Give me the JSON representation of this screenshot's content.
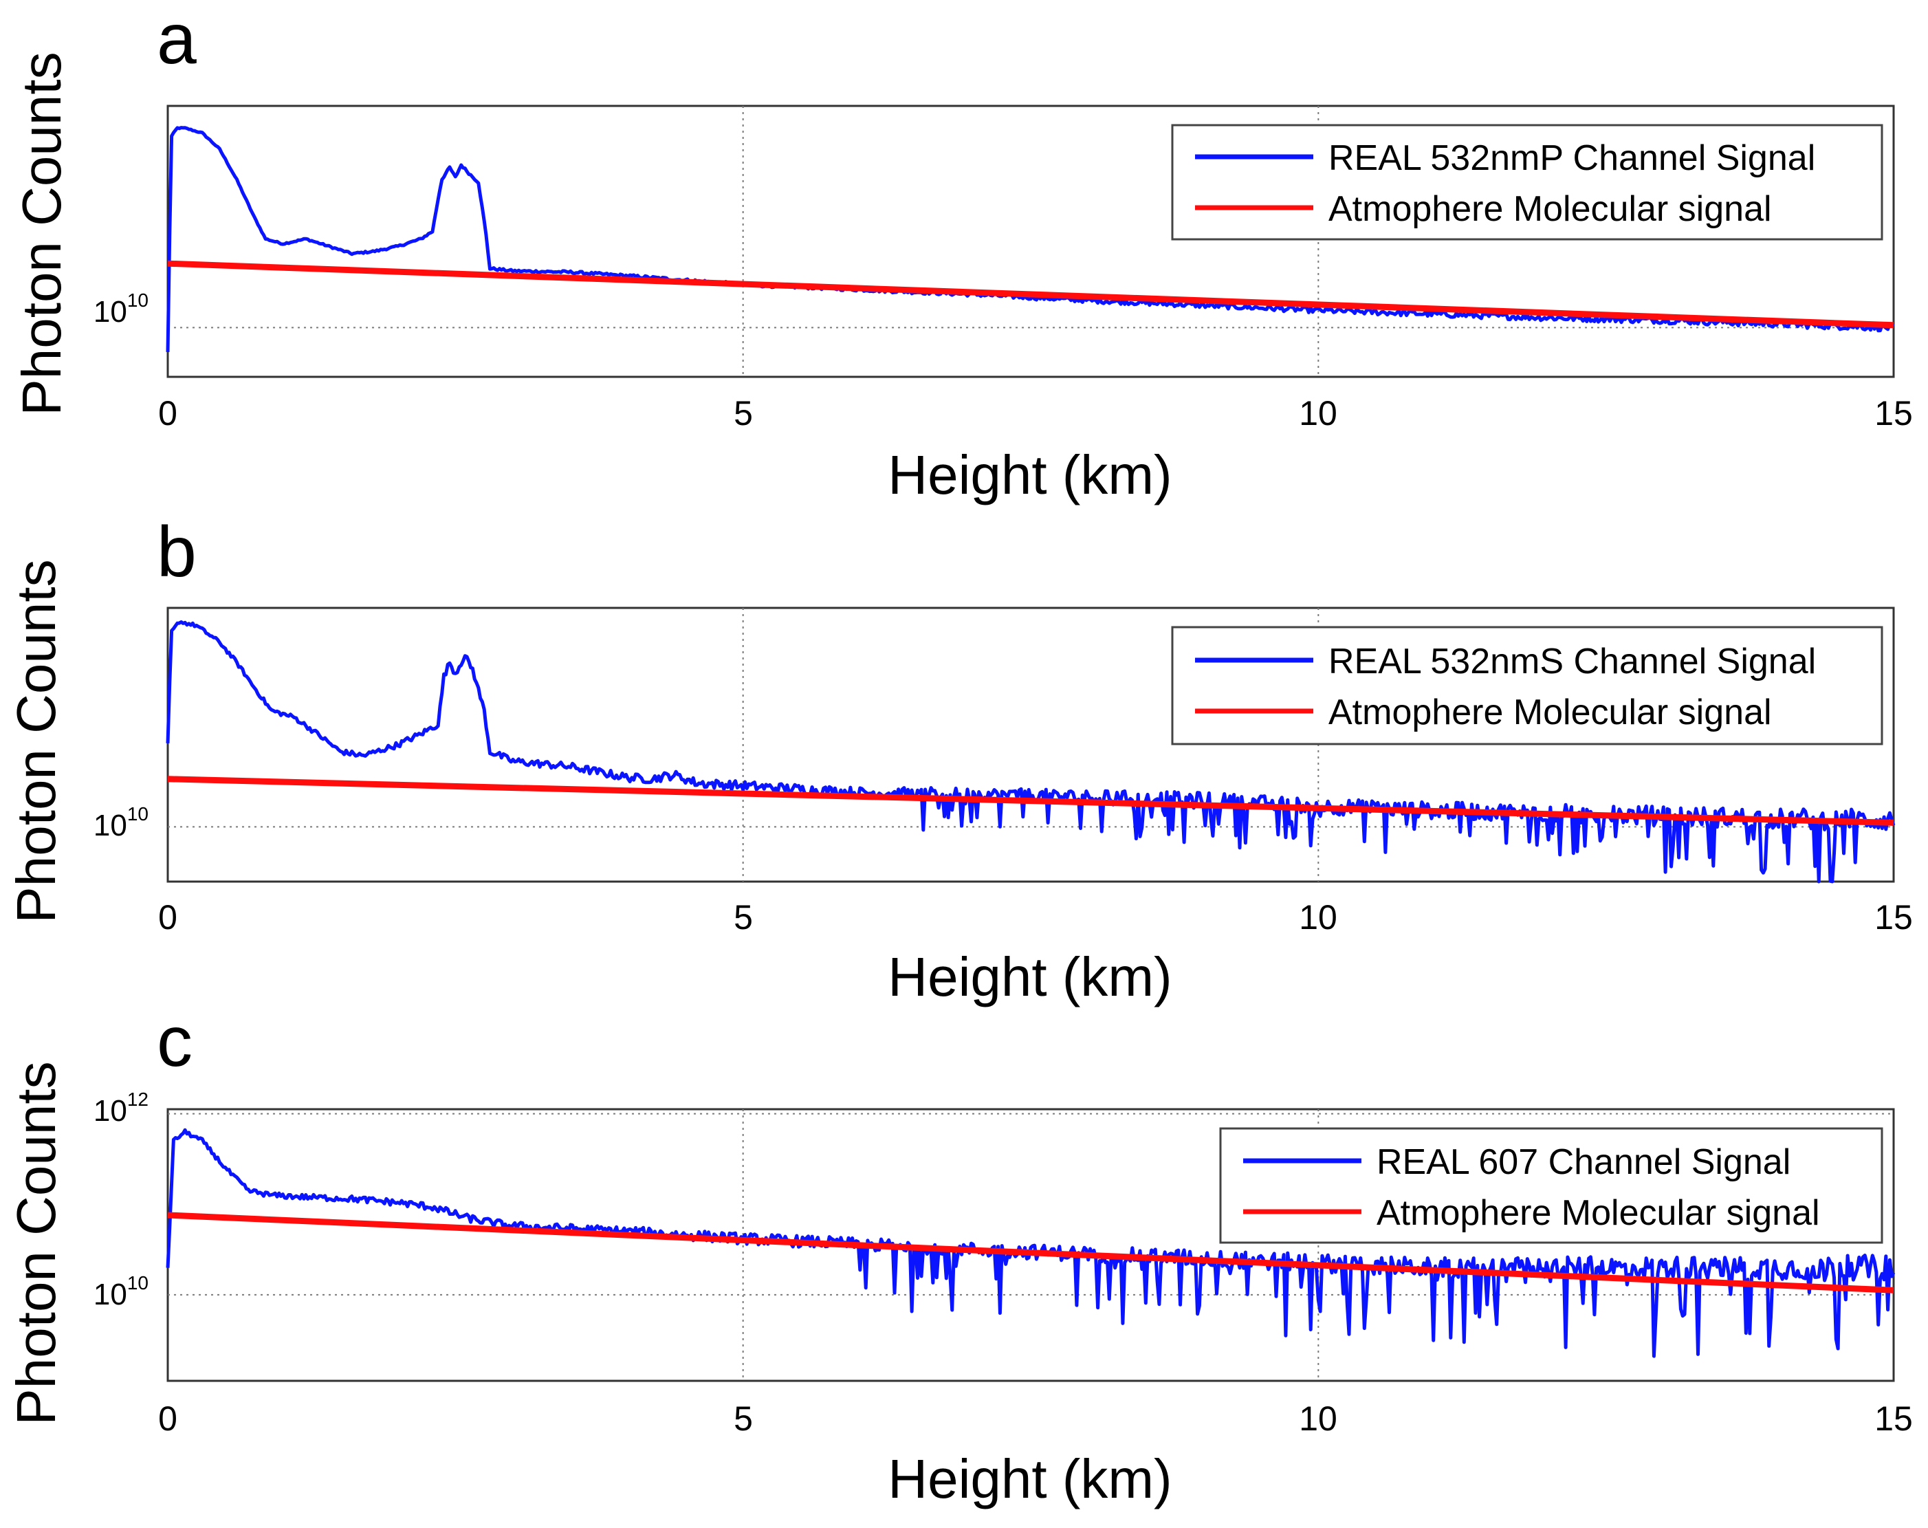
{
  "colors": {
    "signal": "#0a14ff",
    "molecular": "#ff0d0d",
    "grid": "#7a7a7a",
    "axis": "#333333"
  },
  "chart_data": [
    {
      "type": "line",
      "panel_label": "a",
      "ylabel": "Photon Counts",
      "xlabel": "Height (km)",
      "xlim": [
        0,
        15
      ],
      "xticks": [
        "0",
        "5",
        "10",
        "15"
      ],
      "ylim_log10": [
        9.6,
        11.8
      ],
      "yticks": [
        {
          "base": "10",
          "exp": "10",
          "log10": 10
        }
      ],
      "grid": true,
      "legend": {
        "position": "top-right",
        "entries": [
          "REAL 532nmP Channel Signal",
          "Atmophere Molecular signal"
        ]
      },
      "series": [
        {
          "name": "REAL 532nmP Channel Signal",
          "color": "#0a14ff",
          "x": [
            0,
            0.03,
            0.08,
            0.15,
            0.3,
            0.45,
            0.6,
            0.75,
            0.85,
            1.0,
            1.2,
            1.4,
            1.6,
            1.8,
            2.0,
            2.2,
            2.3,
            2.38,
            2.45,
            2.5,
            2.55,
            2.62,
            2.7,
            2.76,
            2.8,
            3.0,
            3.5,
            4.0,
            5.0,
            6.0,
            7.0,
            8.0,
            9.0,
            10.0,
            11.0,
            12.0,
            13.0,
            14.0,
            15.0
          ],
          "log10": [
            9.8,
            11.55,
            11.62,
            11.62,
            11.58,
            11.45,
            11.2,
            10.9,
            10.72,
            10.68,
            10.72,
            10.66,
            10.6,
            10.62,
            10.66,
            10.72,
            10.78,
            11.2,
            11.3,
            11.22,
            11.32,
            11.25,
            11.18,
            10.8,
            10.48,
            10.46,
            10.45,
            10.42,
            10.35,
            10.31,
            10.27,
            10.22,
            10.18,
            10.14,
            10.11,
            10.08,
            10.06,
            10.03,
            10.0
          ],
          "noise": 0.015
        },
        {
          "name": "Atmophere Molecular signal",
          "color": "#ff0d0d",
          "x": [
            0,
            15
          ],
          "log10": [
            10.52,
            10.02
          ]
        }
      ]
    },
    {
      "type": "line",
      "panel_label": "b",
      "ylabel": "Photon Counts",
      "xlabel": "Height (km)",
      "xlim": [
        0,
        15
      ],
      "xticks": [
        "0",
        "5",
        "10",
        "15"
      ],
      "ylim_log10": [
        9.6,
        11.6
      ],
      "yticks": [
        {
          "base": "10",
          "exp": "10",
          "log10": 10
        }
      ],
      "grid": true,
      "legend": {
        "position": "top-right",
        "entries": [
          "REAL 532nmS Channel Signal",
          "Atmophere Molecular signal"
        ]
      },
      "series": [
        {
          "name": "REAL 532nmS Channel Signal",
          "color": "#0a14ff",
          "x": [
            0,
            0.03,
            0.1,
            0.25,
            0.45,
            0.6,
            0.75,
            0.9,
            1.1,
            1.3,
            1.5,
            1.7,
            2.0,
            2.2,
            2.35,
            2.4,
            2.45,
            2.5,
            2.58,
            2.65,
            2.75,
            2.8,
            3.0,
            3.5,
            4.0,
            4.2,
            4.4,
            4.6,
            5.0,
            6.0,
            7.0,
            8.0,
            9.0,
            10.0,
            11.0,
            12.0,
            13.0,
            14.0,
            15.0
          ],
          "log10": [
            10.6,
            11.42,
            11.5,
            11.47,
            11.35,
            11.2,
            11.02,
            10.85,
            10.8,
            10.68,
            10.55,
            10.52,
            10.6,
            10.68,
            10.75,
            11.1,
            11.2,
            11.12,
            11.25,
            11.15,
            10.85,
            10.55,
            10.48,
            10.44,
            10.36,
            10.35,
            10.38,
            10.32,
            10.3,
            10.25,
            10.24,
            10.22,
            10.2,
            10.15,
            10.12,
            10.1,
            10.08,
            10.06,
            10.05
          ],
          "noise": 0.04,
          "dip_from_km": 6.5,
          "dip_depth": 0.35
        },
        {
          "name": "Atmophere Molecular signal",
          "color": "#ff0d0d",
          "x": [
            0,
            15
          ],
          "log10": [
            10.35,
            10.03
          ]
        }
      ]
    },
    {
      "type": "line",
      "panel_label": "c",
      "ylabel": "Photon Counts",
      "xlabel": "Height (km)",
      "xlim": [
        0,
        15
      ],
      "xticks": [
        "0",
        "5",
        "10",
        "15"
      ],
      "ylim_log10": [
        9.05,
        12.05
      ],
      "yticks": [
        {
          "base": "10",
          "exp": "12",
          "log10": 12
        },
        {
          "base": "10",
          "exp": "10",
          "log10": 10
        }
      ],
      "grid": true,
      "legend": {
        "position": "top-right",
        "entries": [
          "REAL 607 Channel Signal",
          "Atmophere Molecular signal"
        ]
      },
      "series": [
        {
          "name": "REAL 607 Channel Signal",
          "color": "#0a14ff",
          "x": [
            0,
            0.05,
            0.15,
            0.3,
            0.5,
            0.7,
            0.9,
            1.2,
            1.6,
            2.0,
            2.3,
            2.6,
            2.8,
            3.0,
            4.0,
            5.0,
            6.0,
            7.0,
            8.0,
            9.0,
            10.0,
            11.0,
            12.0,
            13.0,
            14.0,
            15.0
          ],
          "log10": [
            10.3,
            11.7,
            11.8,
            11.7,
            11.4,
            11.15,
            11.1,
            11.08,
            11.06,
            11.02,
            10.97,
            10.85,
            10.8,
            10.76,
            10.7,
            10.62,
            10.56,
            10.5,
            10.45,
            10.4,
            10.35,
            10.3,
            10.3,
            10.3,
            10.3,
            10.3
          ],
          "noise": 0.07,
          "dip_from_km": 6.0,
          "dip_depth": 0.9
        },
        {
          "name": "Atmophere Molecular signal",
          "color": "#ff0d0d",
          "x": [
            0,
            15
          ],
          "log10": [
            10.88,
            10.05
          ]
        }
      ]
    }
  ]
}
